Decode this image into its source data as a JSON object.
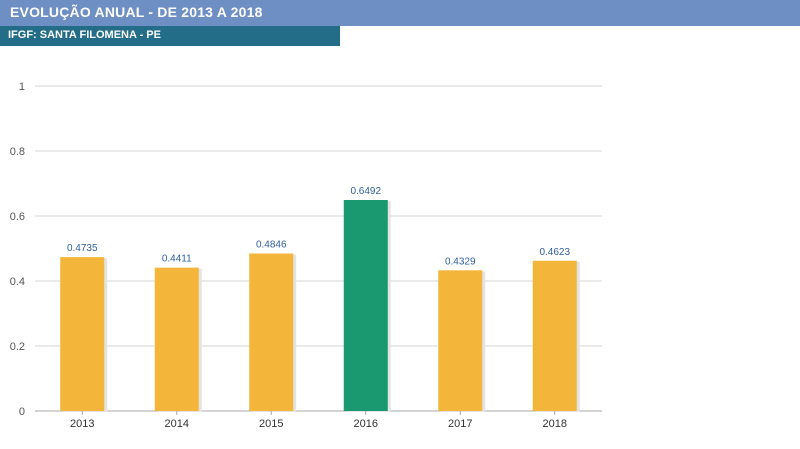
{
  "header": {
    "title": "EVOLUÇÃO ANUAL - DE 2013 A 2018",
    "subtitle": "IFGF: SANTA FILOMENA - PE"
  },
  "colors": {
    "title_bar": "#6e8fc4",
    "subtitle_bar": "#236d88",
    "bar_default": "#f4b63a",
    "bar_highlight": "#1a9870",
    "value_label": "#2f5f9e",
    "grid": "#d6d6d6"
  },
  "chart_data": {
    "type": "bar",
    "title": "",
    "xlabel": "",
    "ylabel": "",
    "categories": [
      "2013",
      "2014",
      "2015",
      "2016",
      "2017",
      "2018"
    ],
    "values": [
      0.4735,
      0.4411,
      0.4846,
      0.6492,
      0.4329,
      0.4623
    ],
    "value_labels": [
      "0.4735",
      "0.4411",
      "0.4846",
      "0.6492",
      "0.4329",
      "0.4623"
    ],
    "highlight_category": "2016",
    "ylim": [
      0,
      1
    ],
    "yticks": [
      "0",
      "0.2",
      "0.4",
      "0.6",
      "0.8",
      "1"
    ],
    "grid": true,
    "legend": "none"
  }
}
